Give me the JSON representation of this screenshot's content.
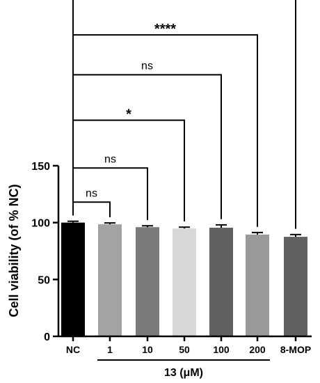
{
  "chart_data": {
    "type": "bar",
    "categories": [
      "NC",
      "1",
      "10",
      "50",
      "100",
      "200",
      "8-MOP"
    ],
    "values": [
      100,
      98.5,
      96,
      94.8,
      95.5,
      89.5,
      87.5
    ],
    "errors": [
      1.2,
      1.2,
      1.2,
      1.2,
      2.5,
      1.8,
      2.0
    ],
    "colors": [
      "#000000",
      "#a3a3a3",
      "#7b7b7b",
      "#d8d8d8",
      "#616161",
      "#9a9a9a",
      "#616161"
    ],
    "ylabel": "Cell viability (of % NC)",
    "yticks": [
      0,
      50,
      100,
      150
    ],
    "ylim": [
      0,
      150
    ],
    "group_label": "13 (μM)",
    "group_range": [
      1,
      5
    ],
    "comparisons": [
      {
        "from": 0,
        "to": 1,
        "label": "ns",
        "level": 118
      },
      {
        "from": 0,
        "to": 2,
        "label": "ns",
        "level": 148
      },
      {
        "from": 0,
        "to": 3,
        "label": "*",
        "level": 190
      },
      {
        "from": 0,
        "to": 4,
        "label": "ns",
        "level": 230
      },
      {
        "from": 0,
        "to": 5,
        "label": "****",
        "level": 265
      },
      {
        "from": 0,
        "to": 6,
        "label": "****",
        "level": 300
      }
    ]
  }
}
